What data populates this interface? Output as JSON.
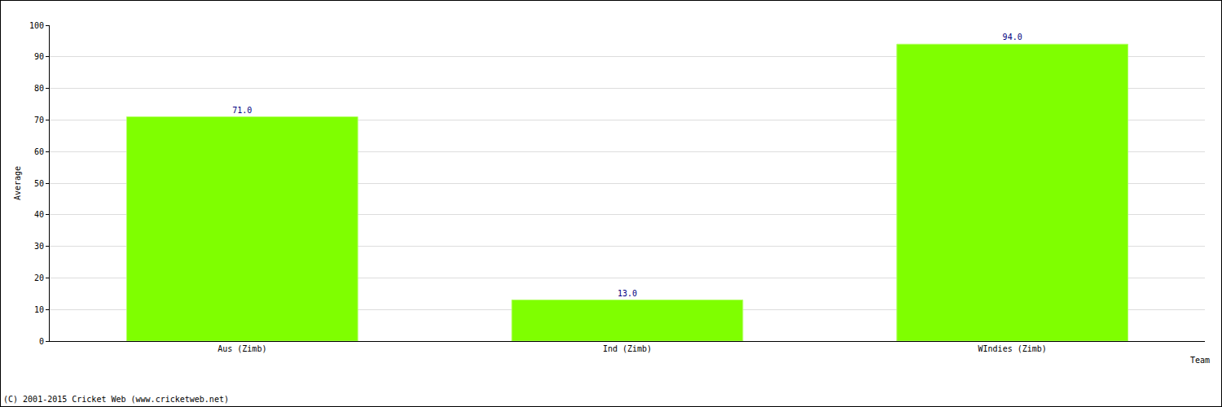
{
  "chart_data": {
    "type": "bar",
    "categories": [
      "Aus (Zimb)",
      "Ind (Zimb)",
      "WIndies (Zimb)"
    ],
    "values": [
      71,
      13,
      94
    ],
    "value_labels": [
      "71.0",
      "13.0",
      "94.0"
    ],
    "data_labels": true,
    "color": "#7fff00",
    "xlabel": "Team",
    "ylabel": "Average",
    "ylim": [
      0,
      100
    ],
    "yticks": [
      0,
      10,
      20,
      30,
      40,
      50,
      60,
      70,
      80,
      90,
      100
    ],
    "grid": true,
    "annotations": [
      "(C) 2001-2015 Cricket Web (www.cricketweb.net)"
    ]
  }
}
